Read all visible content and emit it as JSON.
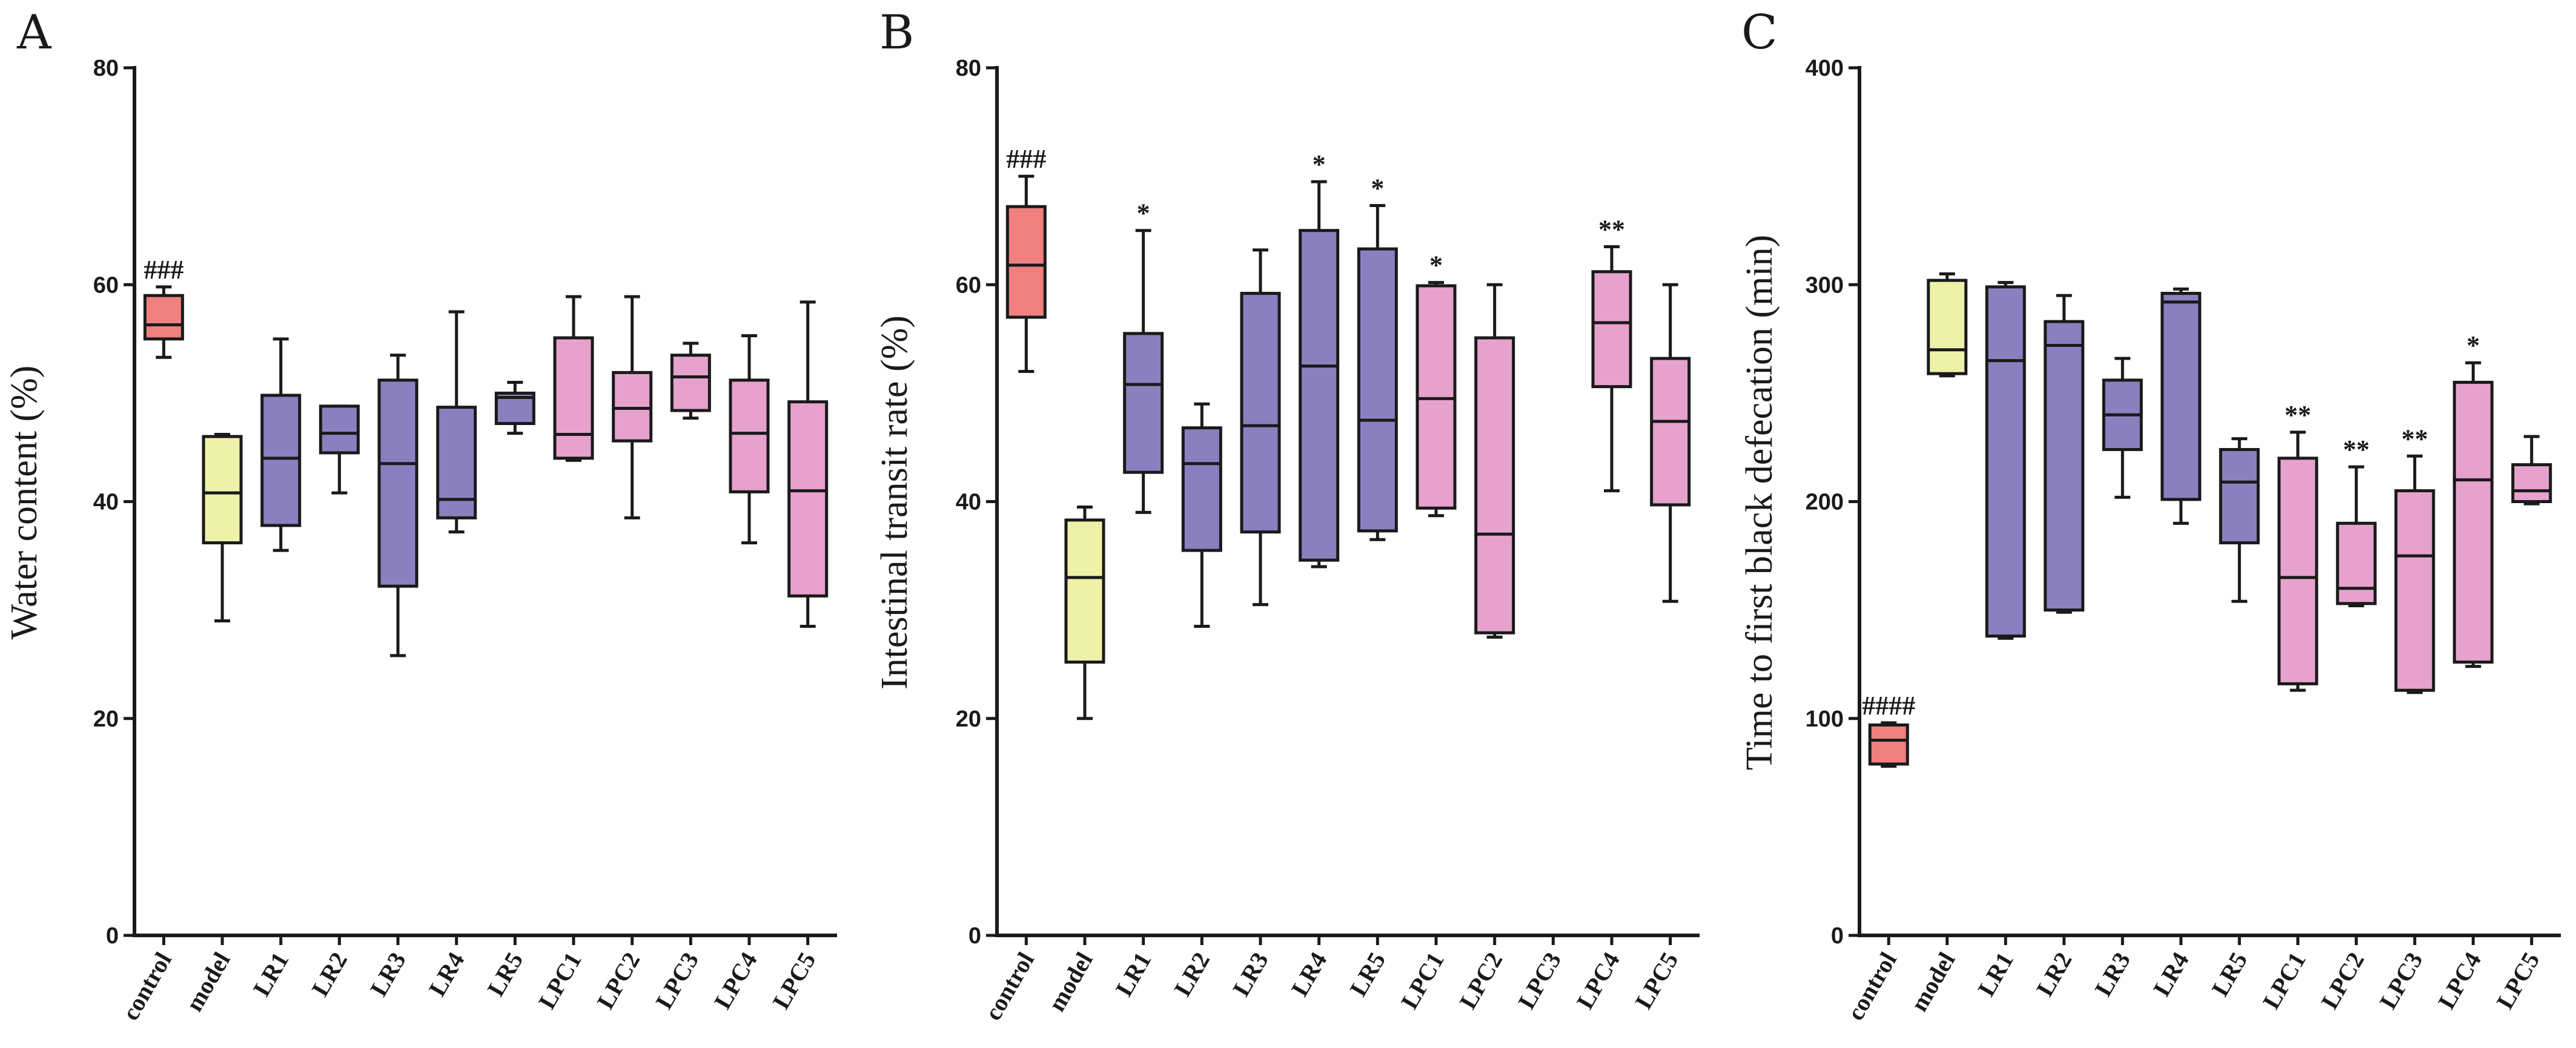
{
  "colors": {
    "control": "#f08080",
    "model": "#eef2a8",
    "LR": "#8a80c0",
    "LPC": "#e6a2cc"
  },
  "chart_data": [
    {
      "panel": "A",
      "type": "box",
      "ylabel": "Water content (%)",
      "ylim": [
        0,
        80
      ],
      "yticks": [
        0,
        20,
        40,
        60,
        80
      ],
      "categories": [
        "control",
        "model",
        "LR1",
        "LR2",
        "LR3",
        "LR4",
        "LR5",
        "LPC1",
        "LPC2",
        "LPC3",
        "LPC4",
        "LPC5"
      ],
      "groups": [
        "control",
        "model",
        "LR",
        "LR",
        "LR",
        "LR",
        "LR",
        "LPC",
        "LPC",
        "LPC",
        "LPC",
        "LPC"
      ],
      "boxes": [
        {
          "min": 53.3,
          "q1": 55.0,
          "median": 56.3,
          "q3": 59.0,
          "max": 59.8
        },
        {
          "min": 29.0,
          "q1": 36.2,
          "median": 40.8,
          "q3": 46.0,
          "max": 46.2
        },
        {
          "min": 35.5,
          "q1": 37.8,
          "median": 44.0,
          "q3": 49.8,
          "max": 55.0
        },
        {
          "min": 40.8,
          "q1": 44.5,
          "median": 46.3,
          "q3": 48.8,
          "max": 48.8
        },
        {
          "min": 25.8,
          "q1": 32.2,
          "median": 43.5,
          "q3": 51.2,
          "max": 53.5
        },
        {
          "min": 37.2,
          "q1": 38.5,
          "median": 40.2,
          "q3": 48.7,
          "max": 57.5
        },
        {
          "min": 46.3,
          "q1": 47.2,
          "median": 49.6,
          "q3": 50.0,
          "max": 51.0
        },
        {
          "min": 43.8,
          "q1": 44.0,
          "median": 46.2,
          "q3": 55.1,
          "max": 58.9
        },
        {
          "min": 38.5,
          "q1": 45.6,
          "median": 48.6,
          "q3": 51.9,
          "max": 58.9
        },
        {
          "min": 47.7,
          "q1": 48.4,
          "median": 51.5,
          "q3": 53.5,
          "max": 54.6
        },
        {
          "min": 36.2,
          "q1": 40.9,
          "median": 46.3,
          "q3": 51.2,
          "max": 55.3
        },
        {
          "min": 28.5,
          "q1": 31.3,
          "median": 41.0,
          "q3": 49.2,
          "max": 58.4
        }
      ],
      "annotations": [
        "###",
        "",
        "",
        "",
        "",
        "",
        "",
        "",
        "",
        "",
        "",
        ""
      ]
    },
    {
      "panel": "B",
      "type": "box",
      "ylabel": "Intestinal transit rate (%)",
      "ylim": [
        0,
        80
      ],
      "yticks": [
        0,
        20,
        40,
        60,
        80
      ],
      "categories": [
        "control",
        "model",
        "LR1",
        "LR2",
        "LR3",
        "LR4",
        "LR5",
        "LPC1",
        "LPC2",
        "LPC3",
        "LPC4",
        "LPC5"
      ],
      "groups": [
        "control",
        "model",
        "LR",
        "LR",
        "LR",
        "LR",
        "LR",
        "LPC",
        "LPC",
        "LPC",
        "LPC",
        "LPC"
      ],
      "boxes": [
        {
          "min": 52.0,
          "q1": 57.0,
          "median": 61.8,
          "q3": 67.2,
          "max": 70.0
        },
        {
          "min": 20.0,
          "q1": 25.2,
          "median": 33.0,
          "q3": 38.3,
          "max": 39.5
        },
        {
          "min": 39.0,
          "q1": 42.7,
          "median": 50.8,
          "q3": 55.5,
          "max": 65.0
        },
        {
          "min": 28.5,
          "q1": 35.5,
          "median": 43.5,
          "q3": 46.8,
          "max": 49.0
        },
        {
          "min": 30.5,
          "q1": 37.2,
          "median": 47.0,
          "q3": 59.2,
          "max": 63.2
        },
        {
          "min": 34.0,
          "q1": 34.6,
          "median": 52.5,
          "q3": 65.0,
          "max": 69.5
        },
        {
          "min": 36.5,
          "q1": 37.3,
          "median": 47.5,
          "q3": 63.3,
          "max": 67.3
        },
        {
          "min": 38.7,
          "q1": 39.4,
          "median": 49.5,
          "q3": 59.9,
          "max": 60.2
        },
        {
          "min": 27.5,
          "q1": 27.9,
          "median": 37.0,
          "q3": 55.1,
          "max": 60.0
        },
        null,
        {
          "min": 41.0,
          "q1": 50.6,
          "median": 56.5,
          "q3": 61.2,
          "max": 63.5
        },
        {
          "min": 30.8,
          "q1": 39.7,
          "median": 47.4,
          "q3": 53.2,
          "max": 60.0
        }
      ],
      "annotations": [
        "###",
        "",
        "*",
        "",
        "",
        "*",
        "*",
        "*",
        "",
        "",
        "**",
        ""
      ]
    },
    {
      "panel": "C",
      "type": "box",
      "ylabel": "Time to first black defecation (min)",
      "ylim": [
        0,
        400
      ],
      "yticks": [
        0,
        100,
        200,
        300,
        400
      ],
      "categories": [
        "control",
        "model",
        "LR1",
        "LR2",
        "LR3",
        "LR4",
        "LR5",
        "LPC1",
        "LPC2",
        "LPC3",
        "LPC4",
        "LPC5"
      ],
      "groups": [
        "control",
        "model",
        "LR",
        "LR",
        "LR",
        "LR",
        "LR",
        "LPC",
        "LPC",
        "LPC",
        "LPC",
        "LPC"
      ],
      "boxes": [
        {
          "min": 78,
          "q1": 79,
          "median": 90,
          "q3": 97,
          "max": 98
        },
        {
          "min": 258,
          "q1": 259,
          "median": 270,
          "q3": 302,
          "max": 305
        },
        {
          "min": 137,
          "q1": 138,
          "median": 265,
          "q3": 299,
          "max": 301
        },
        {
          "min": 149,
          "q1": 150,
          "median": 272,
          "q3": 283,
          "max": 295
        },
        {
          "min": 202,
          "q1": 224,
          "median": 240,
          "q3": 256,
          "max": 266
        },
        {
          "min": 190,
          "q1": 201,
          "median": 292,
          "q3": 296,
          "max": 298
        },
        {
          "min": 154,
          "q1": 181,
          "median": 209,
          "q3": 224,
          "max": 229
        },
        {
          "min": 113,
          "q1": 116,
          "median": 165,
          "q3": 220,
          "max": 232
        },
        {
          "min": 152,
          "q1": 153,
          "median": 160,
          "q3": 190,
          "max": 216
        },
        {
          "min": 112,
          "q1": 113,
          "median": 175,
          "q3": 205,
          "max": 221
        },
        {
          "min": 124,
          "q1": 126,
          "median": 210,
          "q3": 255,
          "max": 264
        },
        {
          "min": 199,
          "q1": 200,
          "median": 205,
          "q3": 217,
          "max": 230
        }
      ],
      "annotations": [
        "####",
        "",
        "",
        "",
        "",
        "",
        "",
        "**",
        "**",
        "**",
        "*",
        ""
      ]
    }
  ]
}
